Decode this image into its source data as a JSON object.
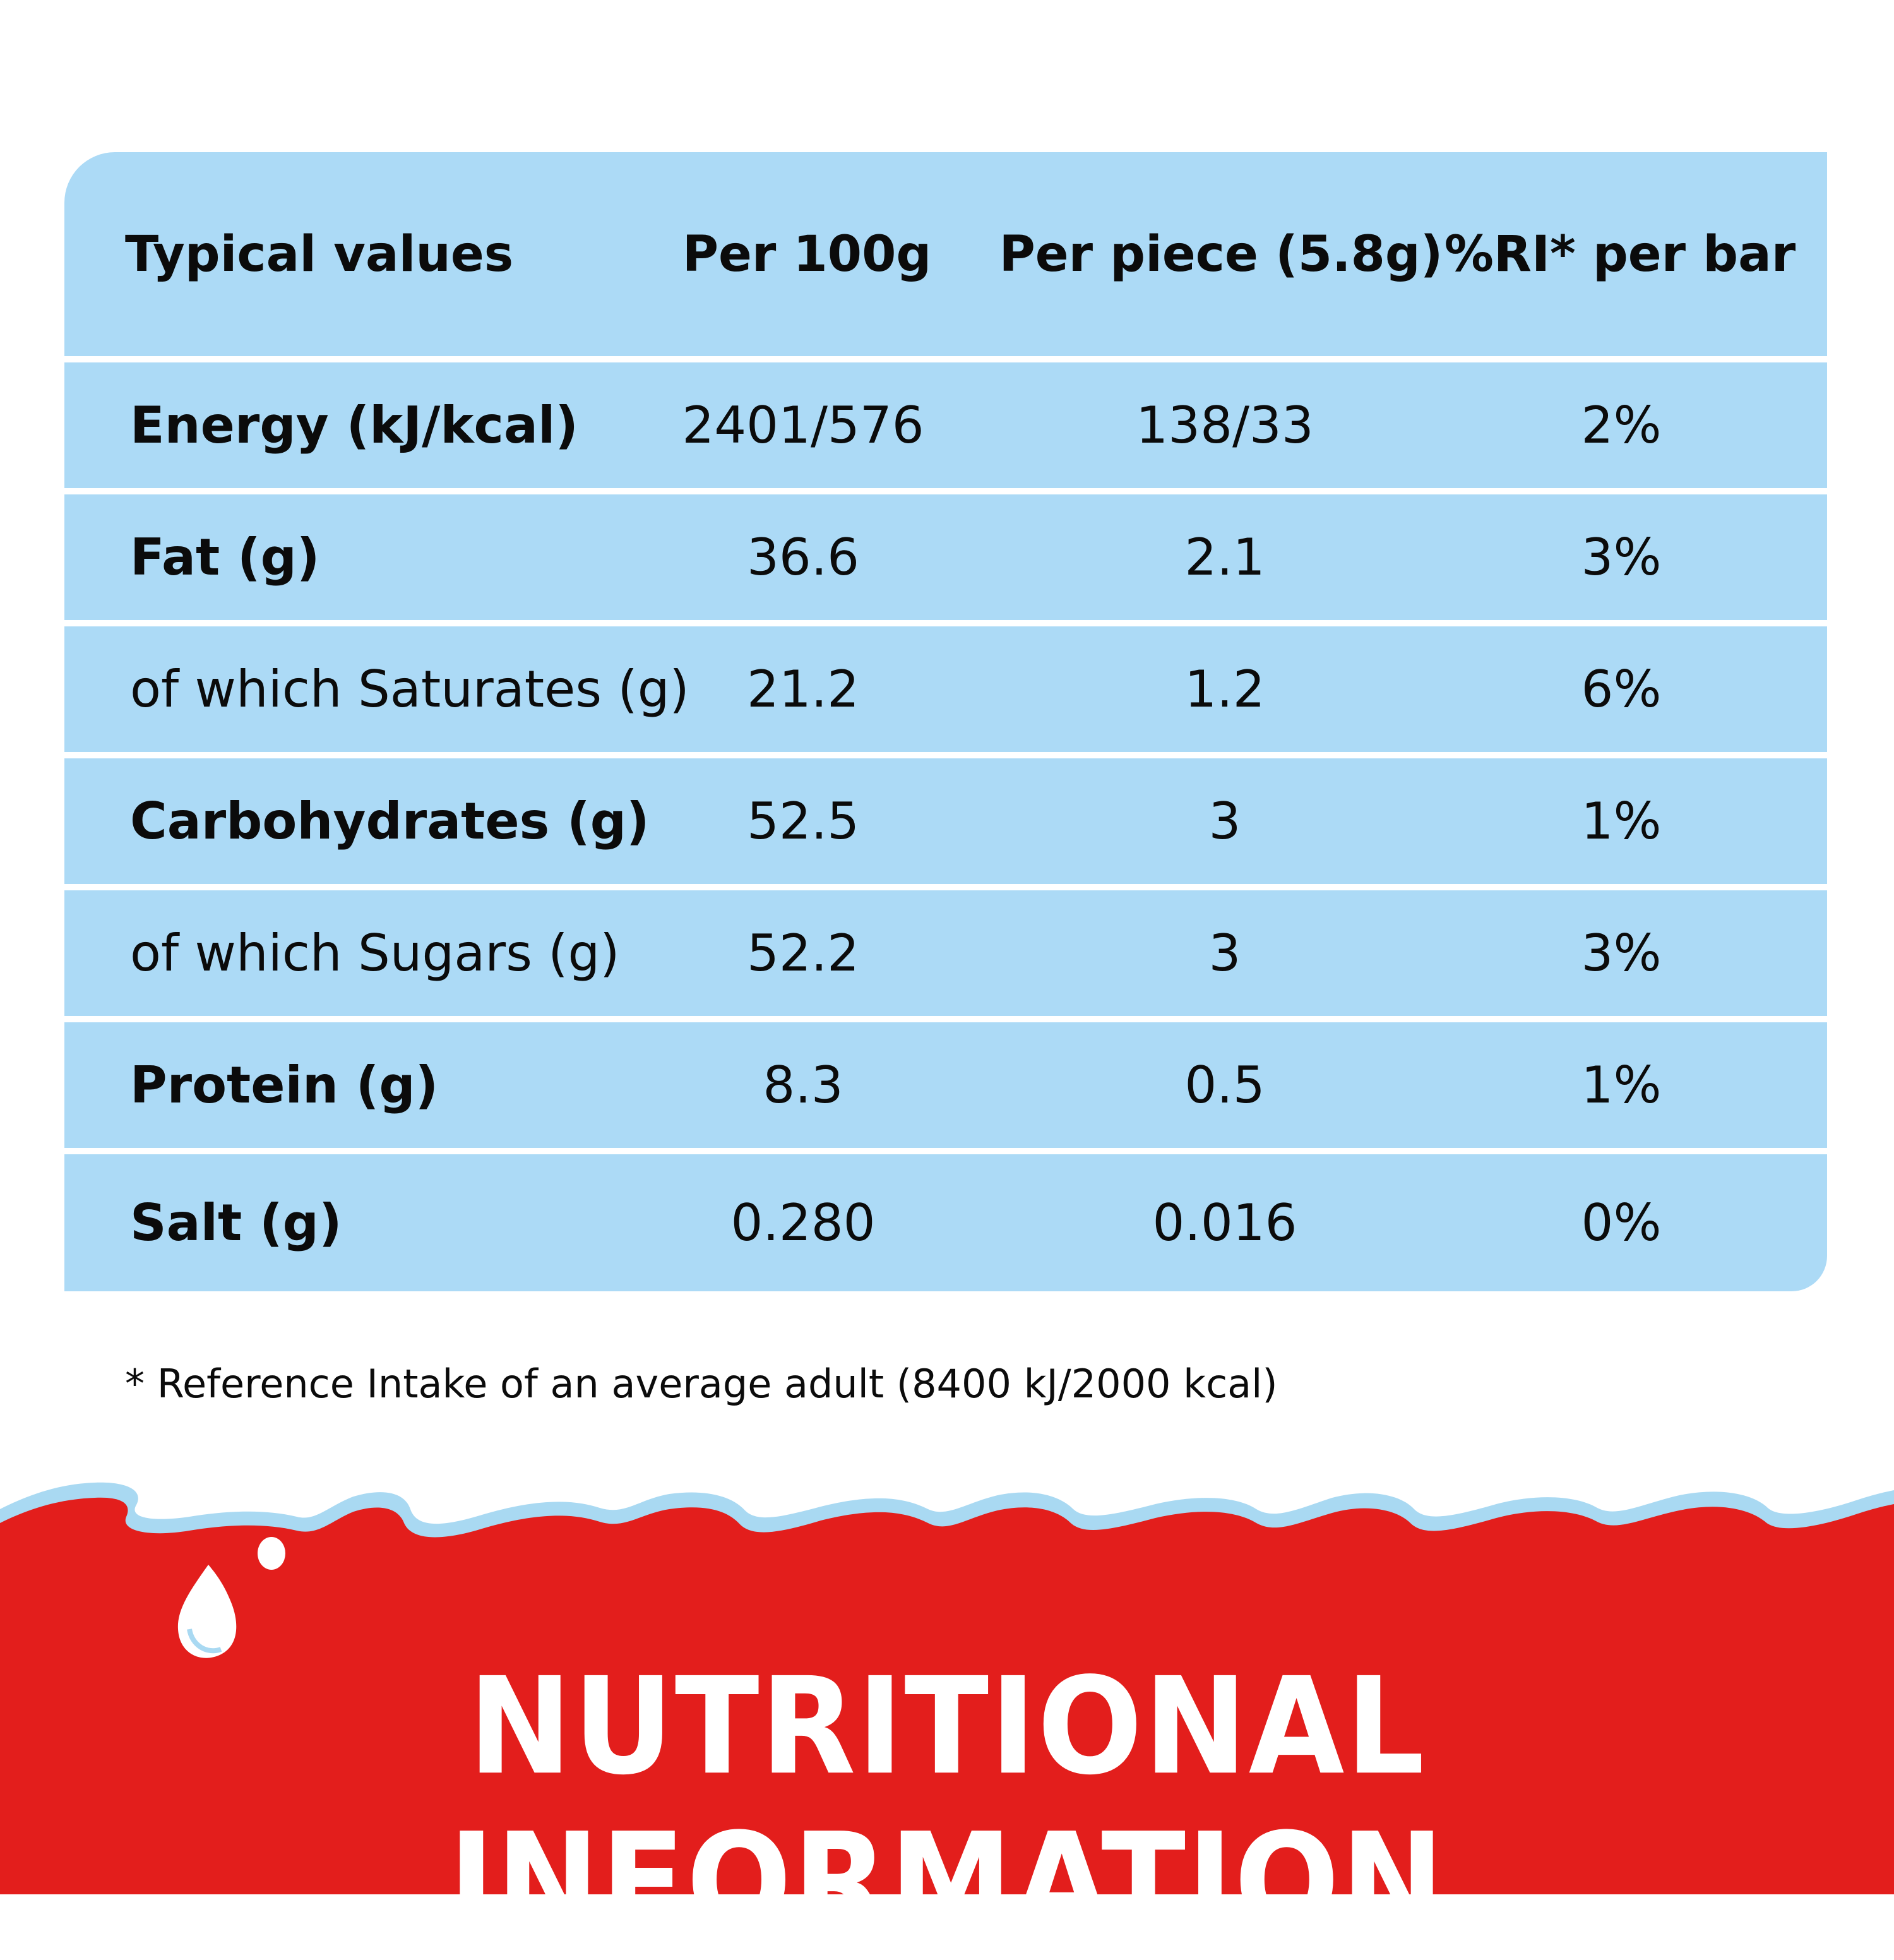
{
  "table": {
    "headers": {
      "label": "Typical values",
      "per100": "Per 100g",
      "perPiece": "Per piece (5.8g)",
      "ri": "%RI* per bar"
    },
    "rows": [
      {
        "label": "Energy (kJ/kcal)",
        "per100": "2401/576",
        "perPiece": "138/33",
        "ri": "2%"
      },
      {
        "label": "Fat (g)",
        "per100": "36.6",
        "perPiece": "2.1",
        "ri": "3%"
      },
      {
        "label": "of which Saturates (g)",
        "per100": "21.2",
        "perPiece": "1.2",
        "ri": "6%"
      },
      {
        "label": "Carbohydrates (g)",
        "per100": "52.5",
        "perPiece": "3",
        "ri": "1%"
      },
      {
        "label": "of which Sugars (g)",
        "per100": "52.2",
        "perPiece": "3",
        "ri": "3%"
      },
      {
        "label": "Protein (g)",
        "per100": "8.3",
        "perPiece": "0.5",
        "ri": "1%"
      },
      {
        "label": "Salt (g)",
        "per100": "0.280",
        "perPiece": "0.016",
        "ri": "0%"
      }
    ]
  },
  "footnote": "* Reference Intake of an average adult (8400 kJ/2000 kcal)",
  "banner": {
    "title": "NUTRITIONAL INFORMATION"
  },
  "colors": {
    "table_bg": "#acdaf6",
    "banner_red": "#e31e1c",
    "milk_blue": "#a9d9f2"
  }
}
